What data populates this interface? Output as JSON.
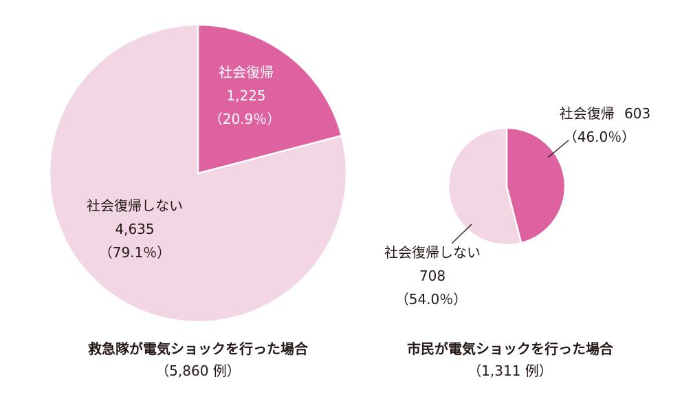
{
  "colors": {
    "return": "#de62a0",
    "no_return": "#f2d6e4",
    "text": "#231815"
  },
  "chart_data": [
    {
      "type": "pie",
      "title": "救急隊が電気ショックを行った場合",
      "subtitle": "（5,860 例）",
      "total": 5860,
      "slices": [
        {
          "label": "社会復帰",
          "value": 1225,
          "value_text": "1,225",
          "percent": 20.9,
          "percent_text": "（20.9％）",
          "color": "#de62a0"
        },
        {
          "label": "社会復帰しない",
          "value": 4635,
          "value_text": "4,635",
          "percent": 79.1,
          "percent_text": "（79.1％）",
          "color": "#f2d6e4"
        }
      ]
    },
    {
      "type": "pie",
      "title": "市民が電気ショックを行った場合",
      "subtitle": "（1,311 例）",
      "total": 1311,
      "slices": [
        {
          "label": "社会復帰",
          "value": 603,
          "value_text": "603",
          "percent": 46.0,
          "percent_text": "（46.0％）",
          "color": "#de62a0"
        },
        {
          "label": "社会復帰しない",
          "value": 708,
          "value_text": "708",
          "percent": 54.0,
          "percent_text": "（54.0％）",
          "color": "#f2d6e4"
        }
      ]
    }
  ]
}
